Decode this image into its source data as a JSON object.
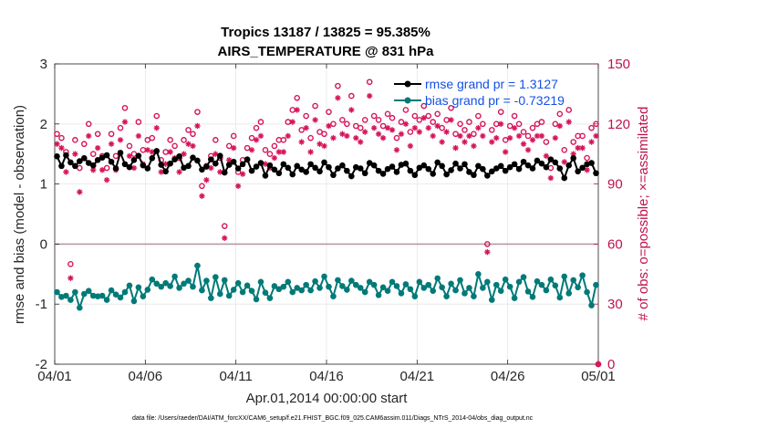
{
  "chart_data": {
    "type": "line",
    "title": "Tropics 13187 / 13825 = 95.385%",
    "subtitle": "AIRS_TEMPERATURE @ 831 hPa",
    "xlabel": "Apr.01,2014 00:00:00 start",
    "ylabel": "rmse and bias (model - observation)",
    "ylabel_right": "# of obs: o=possible; ×=assimilated",
    "xlim": [
      0,
      30
    ],
    "ylim": [
      -2,
      3
    ],
    "ylim_right": [
      0,
      150
    ],
    "x_tick_labels": [
      "04/01",
      "04/06",
      "04/11",
      "04/16",
      "04/21",
      "04/26",
      "05/01"
    ],
    "y_tick_labels": [
      "-2",
      "-1",
      "0",
      "1",
      "2",
      "3"
    ],
    "y_right_tick_labels": [
      "0",
      "30",
      "60",
      "90",
      "120",
      "150"
    ],
    "grid": true,
    "legend_position": "top-right",
    "footnote": "data file: /Users/raeder/DAI/ATM_forcXX/CAM6_setup/f.e21.FHIST_BGC.f09_025.CAM6assim.011/Diags_NTrS_2014-04/obs_diag_output.nc",
    "colors": {
      "rmse": "#000000",
      "bias": "#007a78",
      "obs": "#d6135a",
      "legend_text": "#1450e6",
      "right_axis": "#c0124d",
      "zero_line": "#b89aa0"
    },
    "series": [
      {
        "name": "rmse grand pr = 1.3127",
        "axis": "left",
        "x": [
          0.125,
          0.375,
          0.625,
          0.875,
          1.125,
          1.375,
          1.625,
          1.875,
          2.125,
          2.375,
          2.625,
          2.875,
          3.125,
          3.375,
          3.625,
          3.875,
          4.125,
          4.375,
          4.625,
          4.875,
          5.125,
          5.375,
          5.625,
          5.875,
          6.125,
          6.375,
          6.625,
          6.875,
          7.125,
          7.375,
          7.625,
          7.875,
          8.125,
          8.375,
          8.625,
          8.875,
          9.125,
          9.375,
          9.625,
          9.875,
          10.125,
          10.375,
          10.625,
          10.875,
          11.125,
          11.375,
          11.625,
          11.875,
          12.125,
          12.375,
          12.625,
          12.875,
          13.125,
          13.375,
          13.625,
          13.875,
          14.125,
          14.375,
          14.625,
          14.875,
          15.125,
          15.375,
          15.625,
          15.875,
          16.125,
          16.375,
          16.625,
          16.875,
          17.125,
          17.375,
          17.625,
          17.875,
          18.125,
          18.375,
          18.625,
          18.875,
          19.125,
          19.375,
          19.625,
          19.875,
          20.125,
          20.375,
          20.625,
          20.875,
          21.125,
          21.375,
          21.625,
          21.875,
          22.125,
          22.375,
          22.625,
          22.875,
          23.125,
          23.375,
          23.625,
          23.875,
          24.125,
          24.375,
          24.625,
          24.875,
          25.125,
          25.375,
          25.625,
          25.875,
          26.125,
          26.375,
          26.625,
          26.875,
          27.125,
          27.375,
          27.625,
          27.875,
          28.125,
          28.375,
          28.625,
          28.875,
          29.125,
          29.375,
          29.625,
          29.875
        ],
        "values": [
          1.46,
          1.3,
          1.48,
          1.36,
          1.3,
          1.38,
          1.43,
          1.35,
          1.31,
          1.4,
          1.44,
          1.48,
          1.37,
          1.26,
          1.52,
          1.33,
          1.28,
          1.4,
          1.47,
          1.31,
          1.26,
          1.43,
          1.55,
          1.32,
          1.21,
          1.34,
          1.41,
          1.46,
          1.27,
          1.3,
          1.44,
          1.39,
          1.24,
          1.29,
          1.41,
          1.34,
          1.47,
          1.19,
          1.32,
          1.37,
          1.26,
          1.33,
          1.41,
          1.22,
          1.29,
          1.35,
          1.14,
          1.31,
          1.24,
          1.18,
          1.33,
          1.27,
          1.16,
          1.3,
          1.24,
          1.2,
          1.33,
          1.27,
          1.21,
          1.36,
          1.28,
          1.15,
          1.26,
          1.31,
          1.22,
          1.13,
          1.28,
          1.26,
          1.18,
          1.35,
          1.31,
          1.22,
          1.17,
          1.25,
          1.29,
          1.2,
          1.32,
          1.34,
          1.22,
          1.15,
          1.27,
          1.31,
          1.25,
          1.17,
          1.36,
          1.3,
          1.16,
          1.23,
          1.34,
          1.26,
          1.33,
          1.2,
          1.15,
          1.3,
          1.25,
          1.14,
          1.21,
          1.26,
          1.3,
          1.22,
          1.28,
          1.33,
          1.25,
          1.37,
          1.31,
          1.26,
          1.39,
          1.34,
          1.28,
          1.41,
          1.36,
          1.26,
          1.1,
          1.31,
          1.43,
          1.21,
          1.27,
          1.33,
          1.35,
          1.18
        ]
      },
      {
        "name": "bias grand pr = -0.73219",
        "axis": "left",
        "x": [
          0.125,
          0.375,
          0.625,
          0.875,
          1.125,
          1.375,
          1.625,
          1.875,
          2.125,
          2.375,
          2.625,
          2.875,
          3.125,
          3.375,
          3.625,
          3.875,
          4.125,
          4.375,
          4.625,
          4.875,
          5.125,
          5.375,
          5.625,
          5.875,
          6.125,
          6.375,
          6.625,
          6.875,
          7.125,
          7.375,
          7.625,
          7.875,
          8.125,
          8.375,
          8.625,
          8.875,
          9.125,
          9.375,
          9.625,
          9.875,
          10.125,
          10.375,
          10.625,
          10.875,
          11.125,
          11.375,
          11.625,
          11.875,
          12.125,
          12.375,
          12.625,
          12.875,
          13.125,
          13.375,
          13.625,
          13.875,
          14.125,
          14.375,
          14.625,
          14.875,
          15.125,
          15.375,
          15.625,
          15.875,
          16.125,
          16.375,
          16.625,
          16.875,
          17.125,
          17.375,
          17.625,
          17.875,
          18.125,
          18.375,
          18.625,
          18.875,
          19.125,
          19.375,
          19.625,
          19.875,
          20.125,
          20.375,
          20.625,
          20.875,
          21.125,
          21.375,
          21.625,
          21.875,
          22.125,
          22.375,
          22.625,
          22.875,
          23.125,
          23.375,
          23.625,
          23.875,
          24.125,
          24.375,
          24.625,
          24.875,
          25.125,
          25.375,
          25.625,
          25.875,
          26.125,
          26.375,
          26.625,
          26.875,
          27.125,
          27.375,
          27.625,
          27.875,
          28.125,
          28.375,
          28.625,
          28.875,
          29.125,
          29.375,
          29.625,
          29.875
        ],
        "values": [
          -0.8,
          -0.88,
          -0.86,
          -0.93,
          -0.8,
          -1.06,
          -0.83,
          -0.78,
          -0.86,
          -0.87,
          -0.86,
          -0.93,
          -0.77,
          -0.84,
          -0.89,
          -0.8,
          -0.69,
          -0.95,
          -0.72,
          -0.87,
          -0.76,
          -0.59,
          -0.66,
          -0.71,
          -0.65,
          -0.7,
          -0.54,
          -0.73,
          -0.66,
          -0.61,
          -0.71,
          -0.36,
          -0.77,
          -0.61,
          -0.9,
          -0.55,
          -0.83,
          -0.6,
          -0.86,
          -0.76,
          -0.65,
          -0.8,
          -0.69,
          -0.78,
          -0.92,
          -0.63,
          -0.81,
          -0.9,
          -0.7,
          -0.75,
          -0.71,
          -0.63,
          -0.8,
          -0.73,
          -0.77,
          -0.68,
          -0.77,
          -0.62,
          -0.73,
          -0.54,
          -0.71,
          -0.87,
          -0.6,
          -0.7,
          -0.76,
          -0.61,
          -0.68,
          -0.73,
          -0.8,
          -0.63,
          -0.68,
          -0.85,
          -0.72,
          -0.78,
          -0.63,
          -0.7,
          -0.82,
          -0.67,
          -0.75,
          -0.87,
          -0.63,
          -0.73,
          -0.68,
          -0.78,
          -0.57,
          -0.72,
          -0.87,
          -0.66,
          -0.77,
          -0.6,
          -0.82,
          -0.73,
          -0.87,
          -0.5,
          -0.73,
          -0.63,
          -0.93,
          -0.68,
          -0.78,
          -0.59,
          -0.71,
          -0.9,
          -0.63,
          -0.55,
          -0.79,
          -0.88,
          -0.62,
          -0.68,
          -0.77,
          -0.59,
          -0.69,
          -0.89,
          -0.54,
          -0.82,
          -0.6,
          -0.72,
          -0.52,
          -0.8,
          -1.02,
          -0.68
        ]
      },
      {
        "name": "possible",
        "axis": "right",
        "marker": "o",
        "x": [
          0.125,
          0.375,
          0.625,
          0.875,
          1.125,
          1.375,
          1.625,
          1.875,
          2.125,
          2.375,
          2.625,
          2.875,
          3.125,
          3.375,
          3.625,
          3.875,
          4.125,
          4.375,
          4.625,
          4.875,
          5.125,
          5.375,
          5.625,
          5.875,
          6.125,
          6.375,
          6.625,
          6.875,
          7.125,
          7.375,
          7.625,
          7.875,
          8.125,
          8.375,
          8.625,
          8.875,
          9.125,
          9.375,
          9.625,
          9.875,
          10.125,
          10.375,
          10.625,
          10.875,
          11.125,
          11.375,
          11.625,
          11.875,
          12.125,
          12.375,
          12.625,
          12.875,
          13.125,
          13.375,
          13.625,
          13.875,
          14.125,
          14.375,
          14.625,
          14.875,
          15.125,
          15.375,
          15.625,
          15.875,
          16.125,
          16.375,
          16.625,
          16.875,
          17.125,
          17.375,
          17.625,
          17.875,
          18.125,
          18.375,
          18.625,
          18.875,
          19.125,
          19.375,
          19.625,
          19.875,
          20.125,
          20.375,
          20.625,
          20.875,
          21.125,
          21.375,
          21.625,
          21.875,
          22.125,
          22.375,
          22.625,
          22.875,
          23.125,
          23.375,
          23.625,
          23.875,
          24.125,
          24.375,
          24.625,
          24.875,
          25.125,
          25.375,
          25.625,
          25.875,
          26.125,
          26.375,
          26.625,
          26.875,
          27.125,
          27.375,
          27.625,
          27.875,
          28.125,
          28.375,
          28.625,
          28.875,
          29.125,
          29.375,
          29.625,
          29.875,
          30.0
        ],
        "values": [
          115,
          113,
          106,
          50,
          112,
          98,
          110,
          120,
          105,
          115,
          104,
          98,
          115,
          104,
          118,
          128,
          109,
          105,
          121,
          107,
          112,
          113,
          124,
          102,
          106,
          112,
          109,
          103,
          112,
          117,
          115,
          126,
          89,
          99,
          104,
          112,
          103,
          69,
          109,
          114,
          96,
          102,
          108,
          113,
          118,
          121,
          107,
          105,
          109,
          112,
          112,
          121,
          127,
          133,
          117,
          124,
          113,
          129,
          116,
          115,
          126,
          120,
          139,
          122,
          120,
          134,
          119,
          118,
          122,
          141,
          124,
          122,
          119,
          125,
          123,
          113,
          121,
          127,
          116,
          124,
          122,
          129,
          124,
          121,
          125,
          118,
          122,
          128,
          115,
          120,
          117,
          121,
          115,
          124,
          120,
          60,
          117,
          120,
          126,
          112,
          119,
          124,
          120,
          116,
          114,
          118,
          120,
          121,
          111,
          98,
          120,
          125,
          107,
          127,
          111,
          114,
          114,
          103,
          118,
          120,
          0
        ]
      },
      {
        "name": "assimilated",
        "axis": "right",
        "marker": "x",
        "x": [
          0.125,
          0.375,
          0.625,
          0.875,
          1.125,
          1.375,
          1.625,
          1.875,
          2.125,
          2.375,
          2.625,
          2.875,
          3.125,
          3.375,
          3.625,
          3.875,
          4.125,
          4.375,
          4.625,
          4.875,
          5.125,
          5.375,
          5.625,
          5.875,
          6.125,
          6.375,
          6.625,
          6.875,
          7.125,
          7.375,
          7.625,
          7.875,
          8.125,
          8.375,
          8.625,
          8.875,
          9.125,
          9.375,
          9.625,
          9.875,
          10.125,
          10.375,
          10.625,
          10.875,
          11.125,
          11.375,
          11.625,
          11.875,
          12.125,
          12.375,
          12.625,
          12.875,
          13.125,
          13.375,
          13.625,
          13.875,
          14.125,
          14.375,
          14.625,
          14.875,
          15.125,
          15.375,
          15.625,
          15.875,
          16.125,
          16.375,
          16.625,
          16.875,
          17.125,
          17.375,
          17.625,
          17.875,
          18.125,
          18.375,
          18.625,
          18.875,
          19.125,
          19.375,
          19.625,
          19.875,
          20.125,
          20.375,
          20.625,
          20.875,
          21.125,
          21.375,
          21.625,
          21.875,
          22.125,
          22.375,
          22.625,
          22.875,
          23.125,
          23.375,
          23.625,
          23.875,
          24.125,
          24.375,
          24.625,
          24.875,
          25.125,
          25.375,
          25.625,
          25.875,
          26.125,
          26.375,
          26.625,
          26.875,
          27.125,
          27.375,
          27.625,
          27.875,
          28.125,
          28.375,
          28.625,
          28.875,
          29.125,
          29.375,
          29.625,
          29.875,
          30.0
        ],
        "values": [
          110,
          108,
          96,
          43,
          105,
          86,
          103,
          114,
          97,
          108,
          97,
          92,
          110,
          97,
          112,
          121,
          104,
          98,
          114,
          100,
          107,
          106,
          118,
          96,
          100,
          106,
          103,
          96,
          105,
          110,
          109,
          119,
          84,
          92,
          98,
          105,
          96,
          63,
          102,
          108,
          89,
          95,
          102,
          107,
          112,
          114,
          100,
          98,
          103,
          106,
          106,
          114,
          121,
          127,
          111,
          118,
          106,
          122,
          110,
          109,
          119,
          113,
          133,
          115,
          114,
          127,
          113,
          111,
          116,
          134,
          118,
          115,
          113,
          118,
          117,
          107,
          115,
          120,
          109,
          118,
          116,
          123,
          118,
          114,
          119,
          111,
          116,
          122,
          108,
          114,
          111,
          114,
          109,
          118,
          114,
          56,
          111,
          113,
          120,
          106,
          113,
          118,
          114,
          110,
          107,
          112,
          114,
          114,
          104,
          93,
          113,
          119,
          101,
          121,
          105,
          108,
          108,
          97,
          111,
          114,
          0
        ]
      }
    ]
  }
}
